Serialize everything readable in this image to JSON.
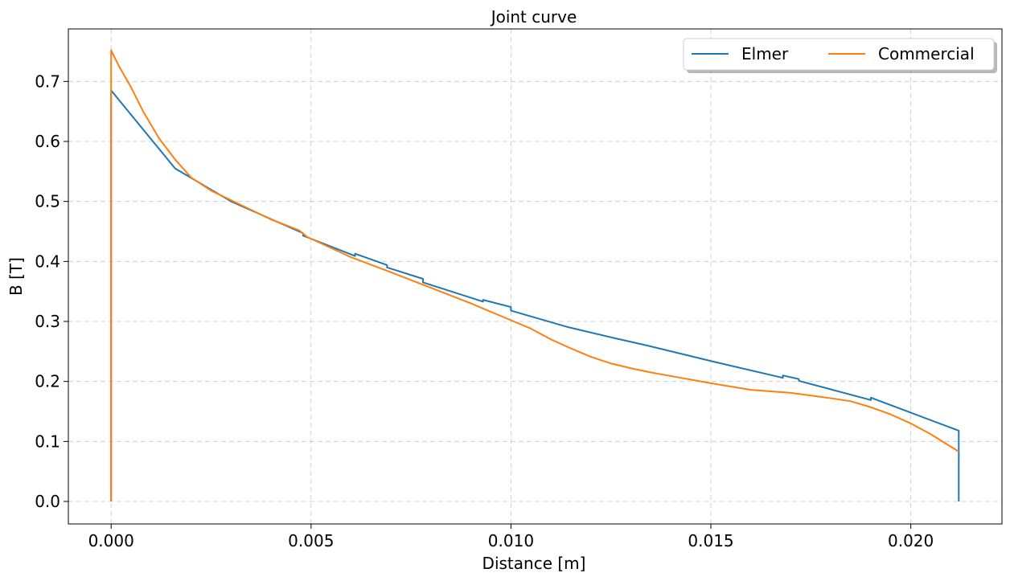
{
  "chart_data": {
    "type": "line",
    "title": "Joint curve",
    "xlabel": "Distance [m]",
    "ylabel": "B [T]",
    "xlim": [
      -0.00107,
      0.02228
    ],
    "ylim": [
      -0.0375,
      0.7875
    ],
    "xticks": [
      0.0,
      0.005,
      0.01,
      0.015,
      0.02
    ],
    "xtick_labels": [
      "0.000",
      "0.005",
      "0.010",
      "0.015",
      "0.020"
    ],
    "yticks": [
      0.0,
      0.1,
      0.2,
      0.3,
      0.4,
      0.5,
      0.6,
      0.7
    ],
    "ytick_labels": [
      "0.0",
      "0.1",
      "0.2",
      "0.3",
      "0.4",
      "0.5",
      "0.6",
      "0.7"
    ],
    "grid": true,
    "legend_position": "top-right",
    "legend_columns": 2,
    "series": [
      {
        "name": "Elmer",
        "color": "#1f77b4",
        "x": [
          0.0,
          0.0,
          0.0016,
          0.003,
          0.0048,
          0.0048,
          0.0061,
          0.0061,
          0.0069,
          0.0069,
          0.0078,
          0.0078,
          0.0093,
          0.0093,
          0.01,
          0.01,
          0.0114,
          0.0126,
          0.0134,
          0.015,
          0.0168,
          0.0168,
          0.0172,
          0.0172,
          0.019,
          0.019,
          0.0212,
          0.0212
        ],
        "y": [
          0.0,
          0.685,
          0.555,
          0.5,
          0.447,
          0.443,
          0.409,
          0.413,
          0.394,
          0.39,
          0.371,
          0.365,
          0.333,
          0.336,
          0.324,
          0.318,
          0.291,
          0.272,
          0.26,
          0.234,
          0.206,
          0.21,
          0.204,
          0.201,
          0.169,
          0.173,
          0.118,
          0.0
        ]
      },
      {
        "name": "Commercial",
        "color": "#ff7f0e",
        "x": [
          0.0,
          0.0,
          5e-05,
          0.0002,
          0.0005,
          0.0008,
          0.0012,
          0.0016,
          0.002,
          0.0025,
          0.003,
          0.0035,
          0.004,
          0.0047,
          0.0049,
          0.006,
          0.007,
          0.008,
          0.009,
          0.01,
          0.0105,
          0.011,
          0.0115,
          0.012,
          0.0125,
          0.013,
          0.0135,
          0.014,
          0.015,
          0.016,
          0.017,
          0.018,
          0.0185,
          0.019,
          0.0195,
          0.02,
          0.0205,
          0.0212
        ],
        "y": [
          0.0,
          0.752,
          0.745,
          0.725,
          0.69,
          0.65,
          0.605,
          0.57,
          0.54,
          0.518,
          0.502,
          0.486,
          0.47,
          0.452,
          0.441,
          0.407,
          0.382,
          0.356,
          0.33,
          0.302,
          0.288,
          0.27,
          0.255,
          0.241,
          0.23,
          0.222,
          0.215,
          0.209,
          0.197,
          0.186,
          0.181,
          0.172,
          0.167,
          0.157,
          0.145,
          0.13,
          0.112,
          0.083
        ]
      }
    ]
  }
}
